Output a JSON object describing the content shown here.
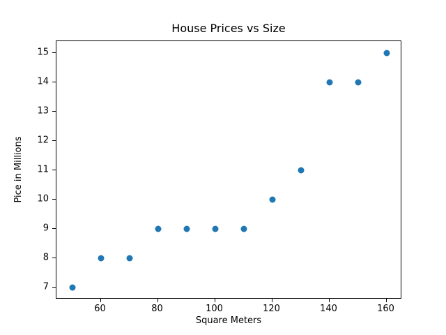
{
  "chart_data": {
    "type": "scatter",
    "title": "House Prices vs Size",
    "xlabel": "Square Meters",
    "ylabel": "Pice in Millions",
    "x": [
      50,
      60,
      70,
      80,
      90,
      100,
      110,
      120,
      130,
      140,
      150,
      160
    ],
    "y": [
      7,
      8,
      8,
      9,
      9,
      9,
      9,
      10,
      11,
      14,
      14,
      15
    ],
    "xlim": [
      44.5,
      165.5
    ],
    "ylim": [
      6.6,
      15.4
    ],
    "xticks": [
      60,
      80,
      100,
      120,
      140,
      160
    ],
    "yticks": [
      7,
      8,
      9,
      10,
      11,
      12,
      13,
      14,
      15
    ],
    "marker_color": "#1f77b4",
    "background_color": "#ffffff",
    "axis_color": "#000000",
    "grid": false,
    "legend": null
  }
}
